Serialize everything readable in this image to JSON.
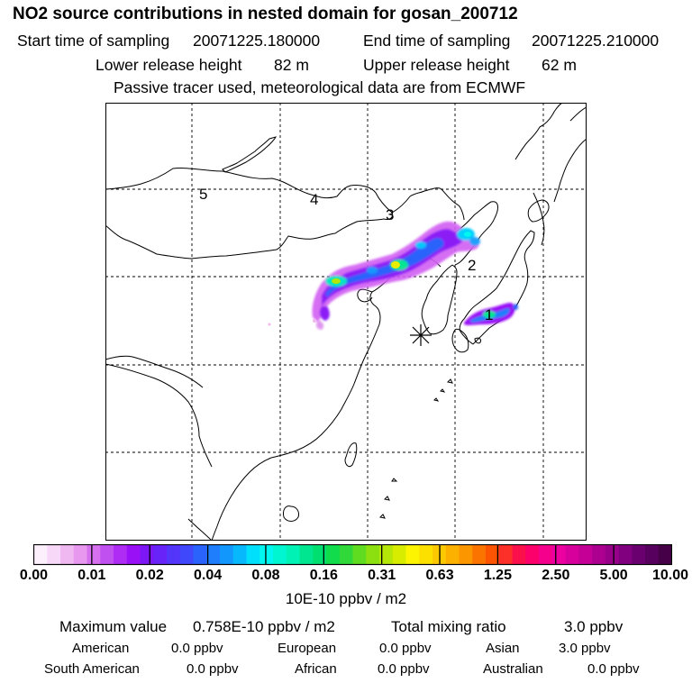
{
  "header": {
    "title": "NO2 source contributions in nested domain for gosan_200712",
    "start_label": "Start time of sampling",
    "start_value": "20071225.180000",
    "end_label": "End time of sampling",
    "end_value": "20071225.210000",
    "lower_label": "Lower release height",
    "lower_value": "82 m",
    "upper_label": "Upper release height",
    "upper_value": "62 m",
    "note": "Passive tracer used, meteorological data are from ECMWF"
  },
  "map": {
    "region_labels": [
      "5",
      "4",
      "3",
      "2",
      "1"
    ],
    "receptor_marker": "star-marker",
    "colors": {
      "land_outline": "#000000",
      "grid": "#000000"
    }
  },
  "colorbar": {
    "unit": "10E-10 ppbv / m2",
    "tick_labels": [
      "0.00",
      "0.01",
      "0.02",
      "0.04",
      "0.08",
      "0.16",
      "0.31",
      "0.63",
      "1.25",
      "2.50",
      "5.00",
      "10.00"
    ],
    "colors": [
      "#fdf0fd",
      "#f8d8f8",
      "#f0b8f0",
      "#e898ee",
      "#d670ee",
      "#c050f0",
      "#ae2cf4",
      "#9a10f6",
      "#7c16f4",
      "#6824f8",
      "#5436fa",
      "#4048fc",
      "#2a62fc",
      "#1e7efc",
      "#1298fc",
      "#08b8fc",
      "#00e0fc",
      "#00f6f0",
      "#00f6d0",
      "#00f2b4",
      "#00e690",
      "#00e070",
      "#10dc4c",
      "#30d83a",
      "#60dc20",
      "#8ce010",
      "#b4e608",
      "#d8ec00",
      "#fcf400",
      "#fce000",
      "#fcc800",
      "#fcb000",
      "#fc9600",
      "#fc7400",
      "#fc5400",
      "#fc3028",
      "#fc104c",
      "#fc006c",
      "#f4008c",
      "#ec00a0",
      "#d8009c",
      "#c40096",
      "#ae0090",
      "#98008a",
      "#800080",
      "#6a0070",
      "#58005e",
      "#460048"
    ]
  },
  "stats": {
    "max_label": "Maximum value",
    "max_value": "0.758E-10 ppbv / m2",
    "total_label": "Total mixing ratio",
    "total_value": "3.0 ppbv",
    "american_label": "American",
    "american_value": "0.0 ppbv",
    "european_label": "European",
    "european_value": "0.0 ppbv",
    "asian_label": "Asian",
    "asian_value": "3.0 ppbv",
    "south_american_label": "South American",
    "south_american_value": "0.0 ppbv",
    "african_label": "African",
    "african_value": "0.0 ppbv",
    "australian_label": "Australian",
    "australian_value": "0.0 ppbv"
  }
}
